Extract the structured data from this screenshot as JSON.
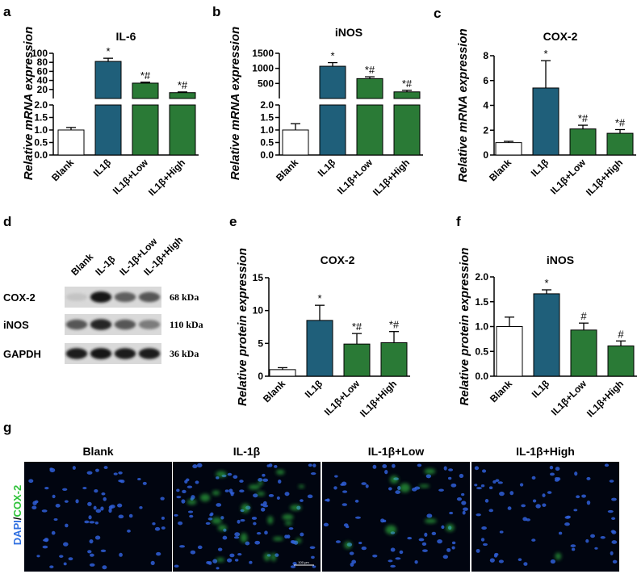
{
  "colors": {
    "blank": "#ffffff",
    "il1b": "#1f5f7a",
    "treat": "#2a7a36",
    "axis": "#000000",
    "dapi": "#2f6fe0",
    "cox2": "#2fc23a"
  },
  "panels": {
    "a": "a",
    "b": "b",
    "c": "c",
    "d": "d",
    "e": "e",
    "f": "f",
    "g": "g"
  },
  "chart_data": [
    {
      "id": "a",
      "type": "bar",
      "title": "IL-6",
      "ylabel": "Relative mRNA expression",
      "broken_axis": true,
      "categories": [
        "Blank",
        "IL1β",
        "IL1β+Low",
        "IL1β+High"
      ],
      "values": [
        1.0,
        82,
        34,
        13
      ],
      "errors": [
        0.1,
        7,
        2,
        1.5
      ],
      "significance": [
        "",
        "*",
        "*#",
        "*#"
      ],
      "lower_segment": {
        "range": [
          0,
          2
        ],
        "ticks": [
          "0.0",
          "0.5",
          "1.0",
          "1.5",
          "2.0"
        ]
      },
      "upper_segment": {
        "range": [
          0,
          100
        ],
        "ticks": [
          "20",
          "40",
          "60",
          "80",
          "100"
        ]
      }
    },
    {
      "id": "b",
      "type": "bar",
      "title": "iNOS",
      "ylabel": "Relative mRNA expression",
      "broken_axis": true,
      "categories": [
        "Blank",
        "IL1β",
        "IL1β+Low",
        "IL1β+High"
      ],
      "values": [
        1.0,
        1070,
        660,
        220
      ],
      "errors": [
        0.25,
        120,
        60,
        50
      ],
      "significance": [
        "",
        "*",
        "*#",
        "*#"
      ],
      "lower_segment": {
        "range": [
          0,
          2
        ],
        "ticks": [
          "0.0",
          "0.5",
          "1.0",
          "1.5",
          "2.0"
        ]
      },
      "upper_segment": {
        "range": [
          0,
          1500
        ],
        "ticks": [
          "500",
          "1000",
          "1500"
        ]
      }
    },
    {
      "id": "c",
      "type": "bar",
      "title": "COX-2",
      "ylabel": "Relative mRNA expression",
      "categories": [
        "Blank",
        "IL1β",
        "IL1β+Low",
        "IL1β+High"
      ],
      "values": [
        1.0,
        5.4,
        2.1,
        1.75
      ],
      "errors": [
        0.1,
        2.2,
        0.3,
        0.3
      ],
      "significance": [
        "",
        "*",
        "*#",
        "*#"
      ],
      "ylim": [
        0,
        8
      ],
      "ticks": [
        "0",
        "2",
        "4",
        "6",
        "8"
      ]
    },
    {
      "id": "e",
      "type": "bar",
      "title": "COX-2",
      "ylabel": "Relative protein expression",
      "categories": [
        "Blank",
        "IL1β",
        "IL1β+Low",
        "IL1β+High"
      ],
      "values": [
        1.0,
        8.5,
        4.9,
        5.1
      ],
      "errors": [
        0.3,
        2.3,
        1.6,
        1.7
      ],
      "significance": [
        "",
        "*",
        "*#",
        "*#"
      ],
      "ylim": [
        0,
        15
      ],
      "ticks": [
        "0",
        "5",
        "10",
        "15"
      ]
    },
    {
      "id": "f",
      "type": "bar",
      "title": "iNOS",
      "ylabel": "Relative protein expression",
      "categories": [
        "Blank",
        "IL1β",
        "IL1β+Low",
        "IL1β+High"
      ],
      "values": [
        1.0,
        1.66,
        0.93,
        0.61
      ],
      "errors": [
        0.19,
        0.08,
        0.14,
        0.1
      ],
      "significance": [
        "",
        "*",
        "#",
        "#"
      ],
      "ylim": [
        0,
        2.0
      ],
      "ticks": [
        "0.0",
        "0.5",
        "1.0",
        "1.5",
        "2.0"
      ]
    }
  ],
  "blot": {
    "lanes": [
      "Blank",
      "IL-1β",
      "IL-1β+Low",
      "IL-1β+High"
    ],
    "rows": [
      {
        "label": "COX-2",
        "kda": "68 kDa",
        "intensity": [
          0.02,
          0.95,
          0.55,
          0.6
        ]
      },
      {
        "label": "iNOS",
        "kda": "110 kDa",
        "intensity": [
          0.6,
          0.85,
          0.6,
          0.4
        ]
      },
      {
        "label": "GAPDH",
        "kda": "36 kDa",
        "intensity": [
          0.9,
          0.92,
          0.9,
          0.9
        ]
      }
    ]
  },
  "fluorescence": {
    "stain_label_a": "DAPI",
    "stain_label_sep": "/",
    "stain_label_b": "COX-2",
    "panels": [
      {
        "title": "Blank",
        "green": 0.0
      },
      {
        "title": "IL-1β",
        "green": 1.0
      },
      {
        "title": "IL-1β+Low",
        "green": 0.35
      },
      {
        "title": "IL-1β+High",
        "green": 0.05
      }
    ],
    "scale_bar": "100 μm"
  }
}
